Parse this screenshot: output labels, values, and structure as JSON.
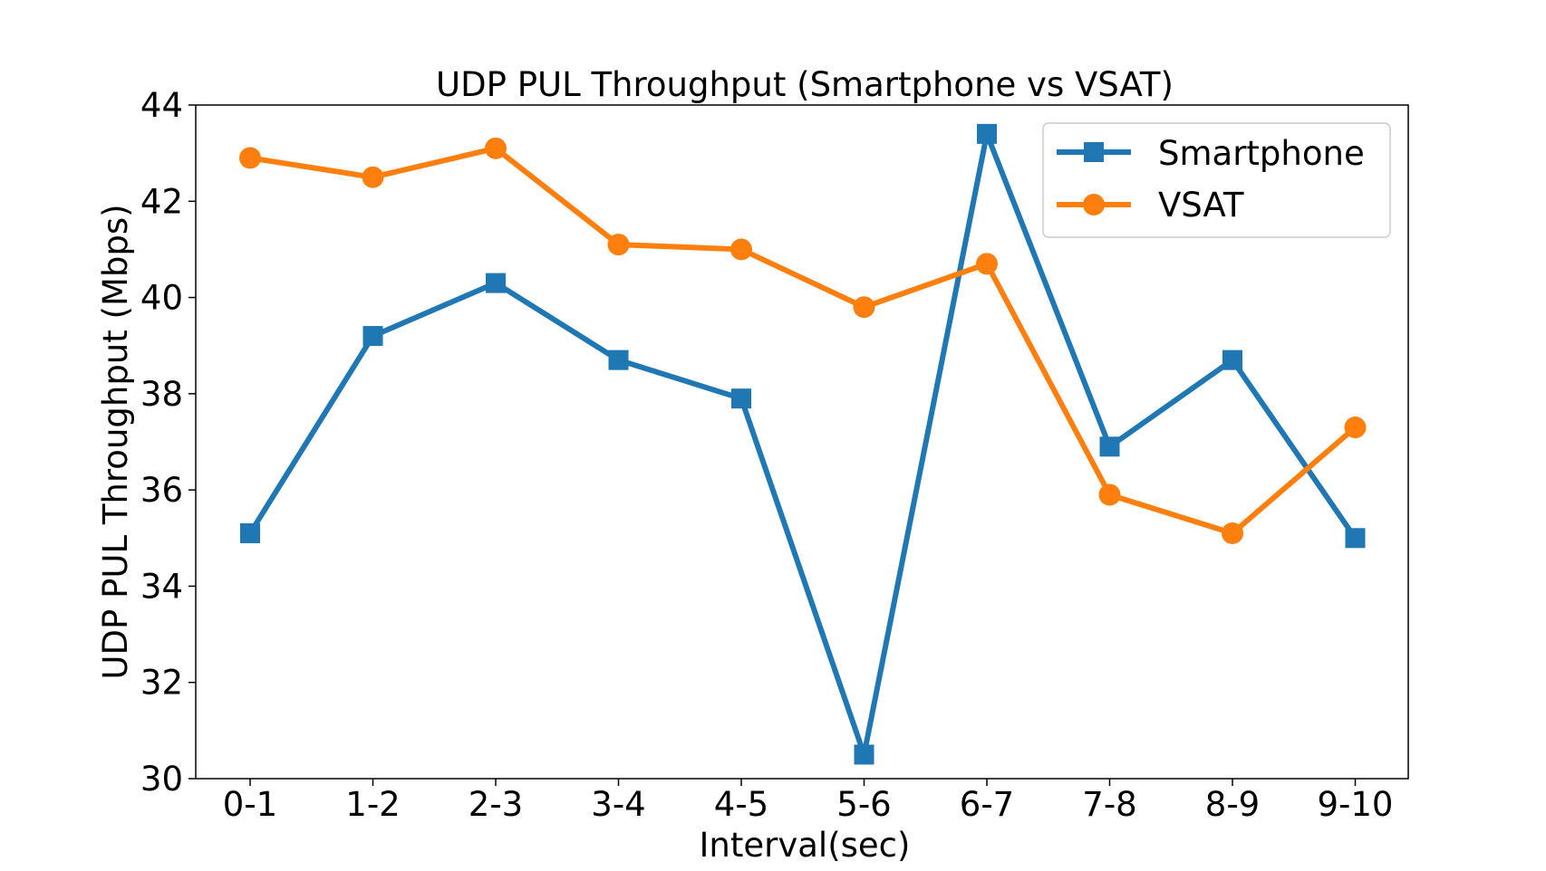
{
  "chart_data": {
    "type": "line",
    "title": "UDP PUL Throughput (Smartphone vs VSAT)",
    "xlabel": "Interval(sec)",
    "ylabel": "UDP PUL Throughput (Mbps)",
    "categories": [
      "0-1",
      "1-2",
      "2-3",
      "3-4",
      "4-5",
      "5-6",
      "6-7",
      "7-8",
      "8-9",
      "9-10"
    ],
    "ylim": [
      30,
      44
    ],
    "yticks": [
      "30",
      "32",
      "34",
      "36",
      "38",
      "40",
      "42",
      "44"
    ],
    "grid": false,
    "legend_position": "top-right",
    "series": [
      {
        "name": "Smartphone",
        "color": "#1f77b4",
        "marker": "square",
        "values": [
          35.1,
          39.2,
          40.3,
          38.7,
          37.9,
          30.5,
          43.4,
          36.9,
          38.7,
          35.0
        ]
      },
      {
        "name": "VSAT",
        "color": "#ff7f0e",
        "marker": "circle",
        "values": [
          42.9,
          42.5,
          43.1,
          41.1,
          41.0,
          39.8,
          40.7,
          35.9,
          35.1,
          37.3
        ]
      }
    ]
  }
}
